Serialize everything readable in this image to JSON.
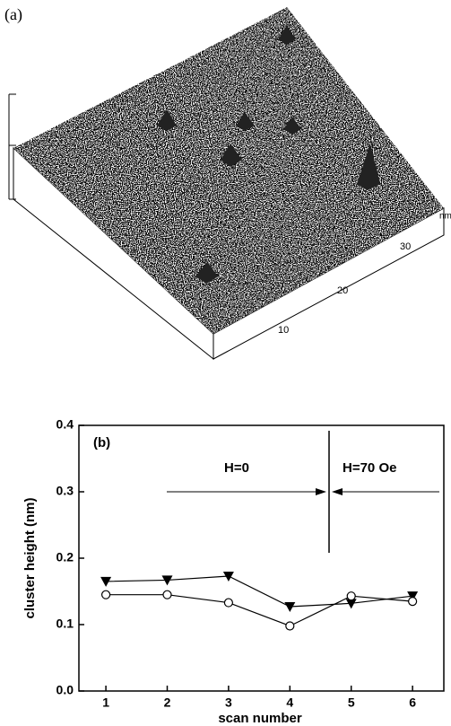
{
  "panel_a": {
    "label": "(a)",
    "axis_labels": [
      "10",
      "20",
      "30"
    ],
    "unit": "nm"
  },
  "chart_data": {
    "type": "line",
    "panel_label": "(b)",
    "x": [
      1,
      2,
      3,
      4,
      5,
      6
    ],
    "xlabel": "scan number",
    "ylabel": "cluster height (nm)",
    "series": [
      {
        "color": "#000000",
        "marker": "triangle-down",
        "values": [
          0.165,
          0.167,
          0.173,
          0.127,
          0.132,
          0.143
        ]
      },
      {
        "color": "#000000",
        "marker": "circle-open",
        "values": [
          0.145,
          0.145,
          0.133,
          0.098,
          0.143,
          0.135
        ]
      }
    ],
    "xlim": [
      0.56,
      6.51
    ],
    "xticks": [
      1,
      2,
      3,
      4,
      5,
      6
    ],
    "ylim": [
      0,
      0.4
    ],
    "yticks": [
      {
        "value": 0,
        "label": "0.0"
      },
      0.1,
      0.2,
      0.3,
      0.4
    ],
    "annotations": [
      "H=0",
      "H=70 Oe"
    ]
  }
}
